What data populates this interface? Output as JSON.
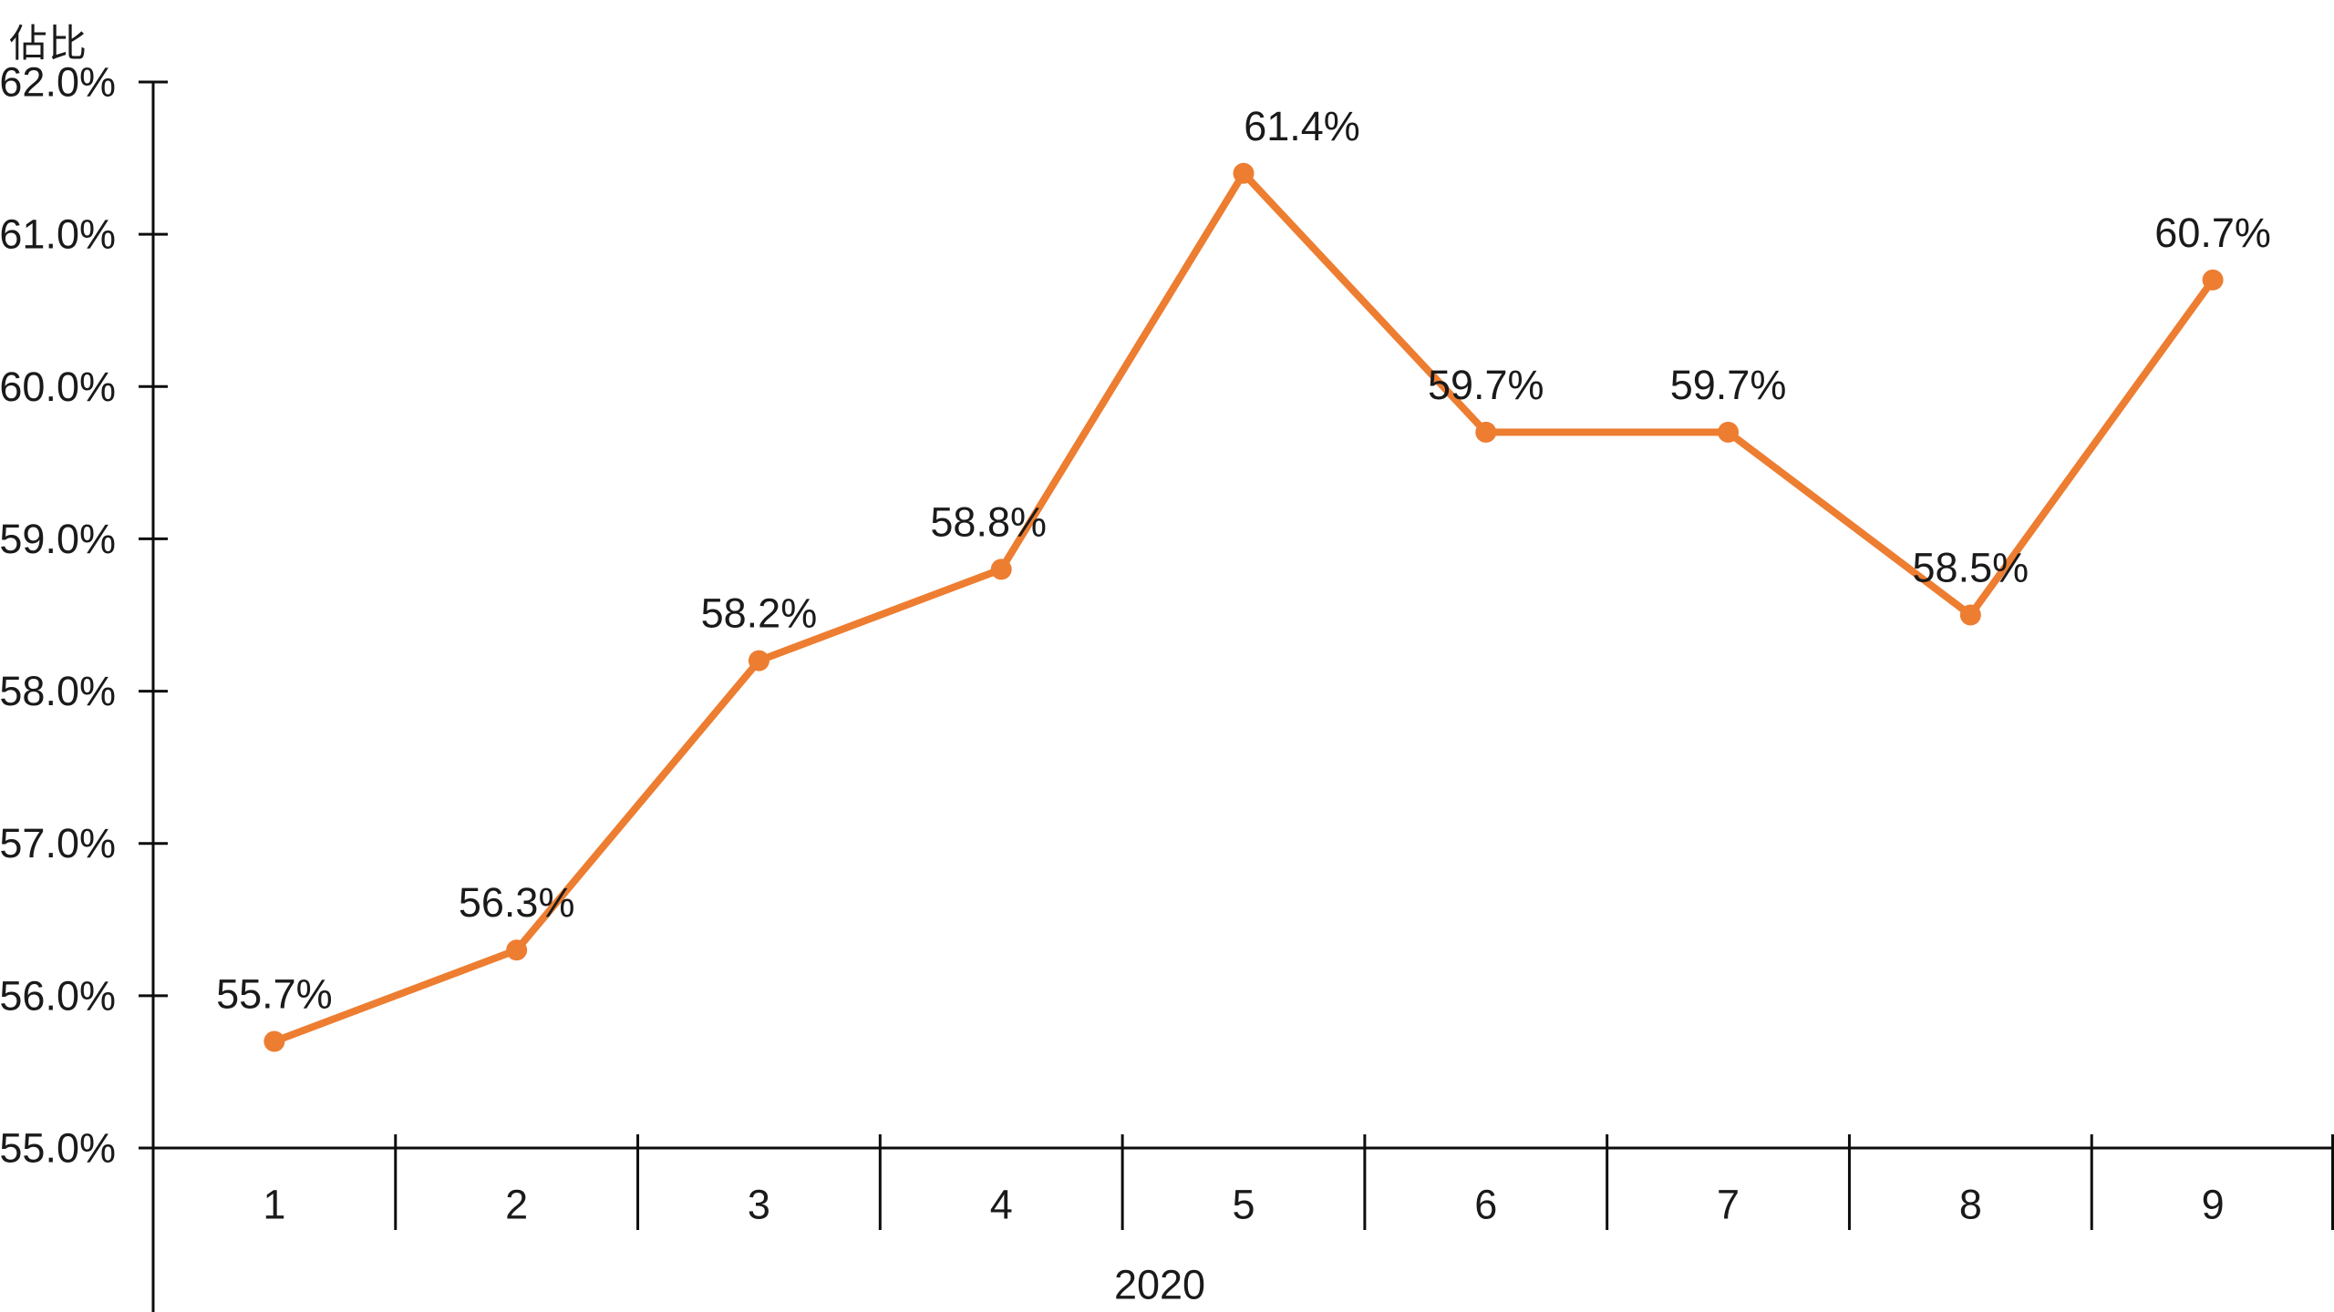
{
  "chart_data": {
    "type": "line",
    "y_axis_title": "佔比",
    "group_label": "2020",
    "categories": [
      "1",
      "2",
      "3",
      "4",
      "5",
      "6",
      "7",
      "8",
      "9"
    ],
    "series": [
      {
        "name": "佔比",
        "values": [
          55.7,
          56.3,
          58.2,
          58.8,
          61.4,
          59.7,
          59.7,
          58.5,
          60.7
        ],
        "data_labels": [
          "55.7%",
          "56.3%",
          "58.2%",
          "58.8%",
          "61.4%",
          "59.7%",
          "59.7%",
          "58.5%",
          "60.7%"
        ]
      }
    ],
    "y_tick_labels": [
      "62.0%",
      "61.0%",
      "60.0%",
      "59.0%",
      "58.0%",
      "57.0%",
      "56.0%",
      "55.0%"
    ],
    "y_tick_values": [
      62.0,
      61.0,
      60.0,
      59.0,
      58.0,
      57.0,
      56.0,
      55.0
    ],
    "ylim": [
      55.0,
      62.0
    ],
    "grid": false,
    "legend": "none",
    "line_color": "#ED7D31",
    "marker_color": "#ED7D31",
    "axis_color": "#0d0d0d",
    "text_color": "#1a1a1a"
  }
}
